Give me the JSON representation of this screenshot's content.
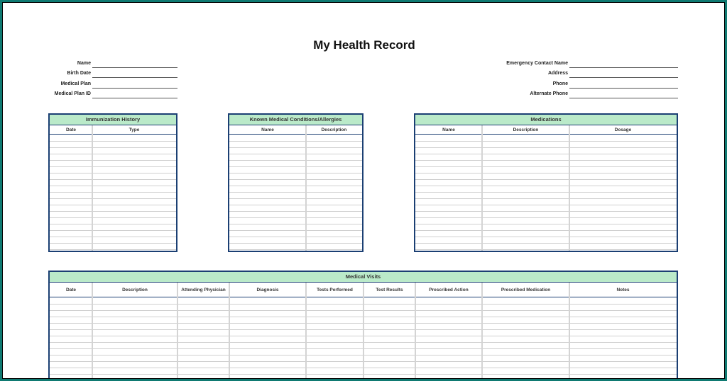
{
  "title": "My Health Record",
  "left_fields": [
    "Name",
    "Birth Date",
    "Medical Plan",
    "Medical Plan ID"
  ],
  "right_fields": [
    "Emergency Contact Name",
    "Address",
    "Phone",
    "Alternate Phone"
  ],
  "immunization": {
    "title": "Immunization History",
    "columns": [
      "Date",
      "Type"
    ]
  },
  "conditions": {
    "title": "Known Medical Conditions/Allergies",
    "columns": [
      "Name",
      "Description"
    ]
  },
  "medications": {
    "title": "Medications",
    "columns": [
      "Name",
      "Description",
      "Dosage"
    ]
  },
  "visits": {
    "title": "Medical Visits",
    "columns": [
      "Date",
      "Description",
      "Attending Physician",
      "Diagnosis",
      "Tests Performed",
      "Test Results",
      "Prescribed Action",
      "Prescribed Medication",
      "Notes"
    ]
  },
  "colors": {
    "frame": "#0f7a72",
    "table_border": "#1b3f73",
    "header_fill": "#c4f0cc"
  }
}
